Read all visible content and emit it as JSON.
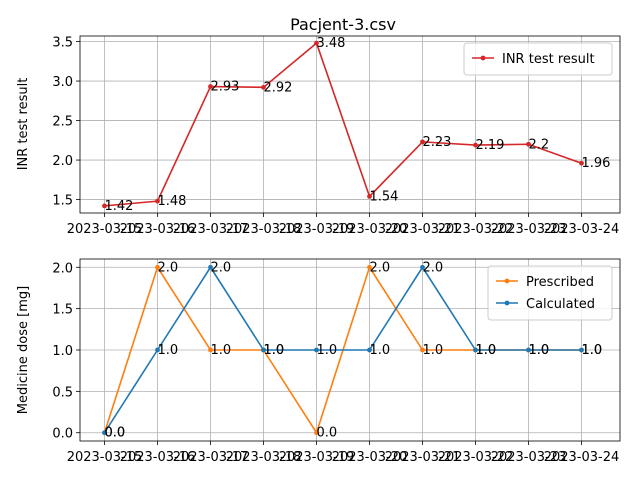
{
  "chart_data": [
    {
      "type": "line",
      "title": "Pacjent-3.csv",
      "xlabel": "",
      "ylabel": "INR test result",
      "categories": [
        "2023-03-15",
        "2023-03-16",
        "2023-03-17",
        "2023-03-18",
        "2023-03-19",
        "2023-03-20",
        "2023-03-21",
        "2023-03-22",
        "2023-03-23",
        "2023-03-24"
      ],
      "ylim": [
        1.33,
        3.57
      ],
      "yticks": [
        1.5,
        2.0,
        2.5,
        3.0,
        3.5
      ],
      "ytick_labels": [
        "1.5",
        "2.0",
        "2.5",
        "3.0",
        "3.5"
      ],
      "grid": true,
      "legend_position": "top-right",
      "series": [
        {
          "name": "INR test result",
          "color": "#d62728",
          "values": [
            1.42,
            1.48,
            2.93,
            2.92,
            3.48,
            1.54,
            2.23,
            2.19,
            2.2,
            1.96
          ],
          "labels": [
            "1.42",
            "1.48",
            "2.93",
            "2.92",
            "3.48",
            "1.54",
            "2.23",
            "2.19",
            "2.2",
            "1.96"
          ]
        }
      ]
    },
    {
      "type": "line",
      "title": "",
      "xlabel": "",
      "ylabel": "Medicine dose [mg]",
      "categories": [
        "2023-03-15",
        "2023-03-16",
        "2023-03-17",
        "2023-03-18",
        "2023-03-19",
        "2023-03-20",
        "2023-03-21",
        "2023-03-22",
        "2023-03-23",
        "2023-03-24"
      ],
      "ylim": [
        -0.1,
        2.1
      ],
      "yticks": [
        0.0,
        0.5,
        1.0,
        1.5,
        2.0
      ],
      "ytick_labels": [
        "0.0",
        "0.5",
        "1.0",
        "1.5",
        "2.0"
      ],
      "grid": true,
      "legend_position": "top-right",
      "series": [
        {
          "name": "Prescribed",
          "color": "#ff7f0e",
          "values": [
            0.0,
            2.0,
            1.0,
            1.0,
            0.0,
            2.0,
            1.0,
            1.0,
            1.0,
            1.0
          ],
          "labels": [
            "0.0",
            "2.0",
            "1.0",
            "1.0",
            "0.0",
            "2.0",
            "1.0",
            "1.0",
            "1.0",
            "1.0"
          ]
        },
        {
          "name": "Calculated",
          "color": "#1f77b4",
          "values": [
            0.0,
            1.0,
            2.0,
            1.0,
            1.0,
            1.0,
            2.0,
            1.0,
            1.0,
            1.0
          ],
          "labels": [
            "0.0",
            "1.0",
            "2.0",
            "1.0",
            "1.0",
            "1.0",
            "2.0",
            "1.0",
            "1.0",
            "1.0"
          ]
        }
      ]
    }
  ]
}
